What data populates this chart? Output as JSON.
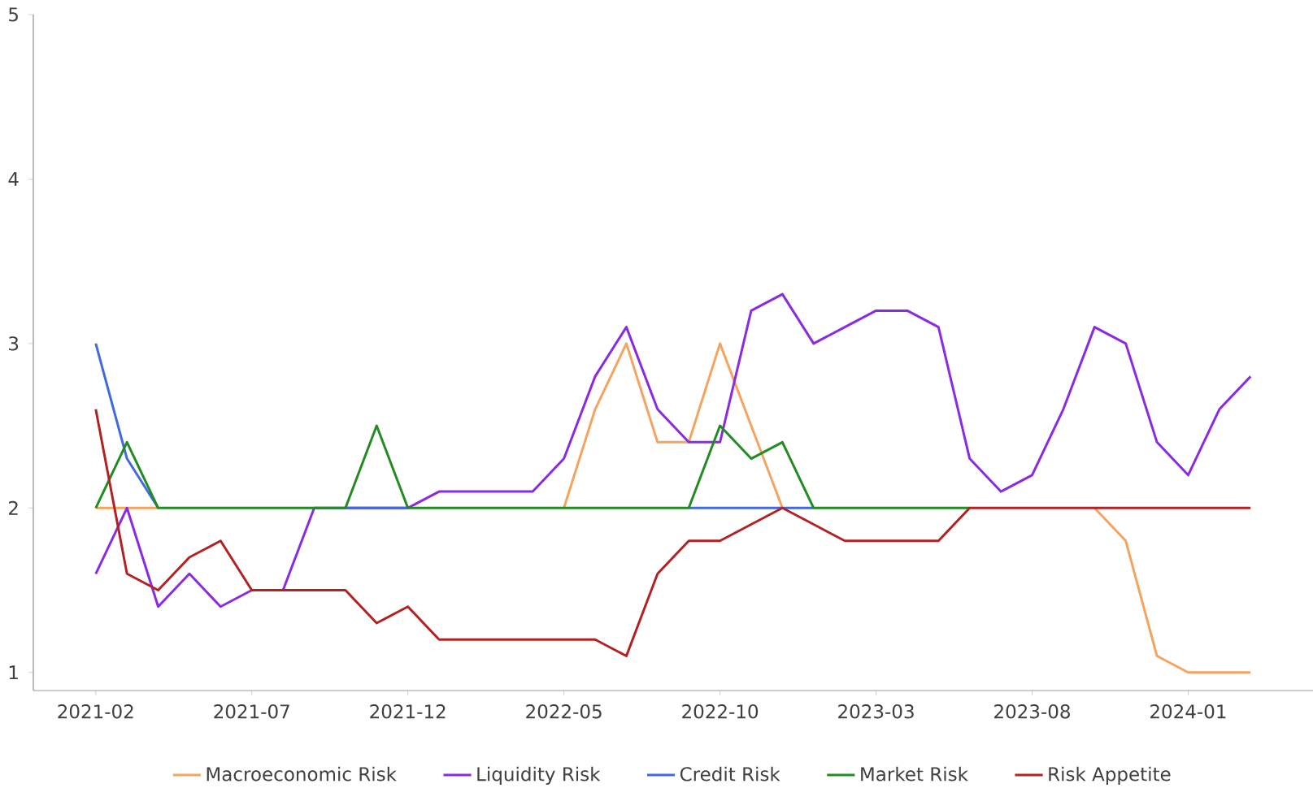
{
  "chart_data": {
    "type": "line",
    "x": [
      "2021-02",
      "2021-03",
      "2021-04",
      "2021-05",
      "2021-06",
      "2021-07",
      "2021-08",
      "2021-09",
      "2021-10",
      "2021-11",
      "2021-12",
      "2022-01",
      "2022-02",
      "2022-03",
      "2022-04",
      "2022-05",
      "2022-06",
      "2022-07",
      "2022-08",
      "2022-09",
      "2022-10",
      "2022-11",
      "2022-12",
      "2023-01",
      "2023-02",
      "2023-03",
      "2023-04",
      "2023-05",
      "2023-06",
      "2023-07",
      "2023-08",
      "2023-09",
      "2023-10",
      "2023-11",
      "2023-12",
      "2024-01",
      "2024-02",
      "2024-03"
    ],
    "series": [
      {
        "name": "Macroeconomic Risk",
        "color": "#f4a460",
        "values": [
          2,
          2,
          2,
          null,
          null,
          null,
          null,
          null,
          null,
          null,
          null,
          null,
          null,
          null,
          null,
          2,
          2.6,
          3.0,
          2.4,
          2.4,
          3.0,
          2.5,
          2,
          null,
          null,
          null,
          null,
          null,
          null,
          null,
          null,
          null,
          2,
          1.8,
          1.1,
          1.0,
          1.0,
          1.0
        ]
      },
      {
        "name": "Liquidity Risk",
        "color": "#8a2be2",
        "values": [
          1.6,
          2.0,
          1.4,
          1.6,
          1.4,
          1.5,
          1.5,
          2.0,
          2.0,
          2.0,
          2.0,
          2.1,
          2.1,
          2.1,
          2.1,
          2.3,
          2.8,
          3.1,
          2.6,
          2.4,
          2.4,
          3.2,
          3.3,
          3.0,
          3.1,
          3.2,
          3.2,
          3.1,
          2.3,
          2.1,
          2.2,
          2.6,
          3.1,
          3.0,
          2.4,
          2.2,
          2.6,
          2.8
        ]
      },
      {
        "name": "Credit Risk",
        "color": "#4169e1",
        "values": [
          3.0,
          2.3,
          2,
          null,
          null,
          null,
          null,
          null,
          2,
          2,
          2,
          null,
          null,
          null,
          null,
          null,
          null,
          null,
          null,
          2,
          2,
          2,
          2,
          2,
          null,
          null,
          null,
          null,
          null,
          null,
          null,
          null,
          null,
          null,
          null,
          null,
          null,
          null
        ]
      },
      {
        "name": "Market Risk",
        "color": "#228b22",
        "values": [
          2,
          2.4,
          2,
          2,
          2,
          2,
          2,
          2,
          2,
          2.5,
          2,
          2,
          2,
          2,
          2,
          2,
          2,
          2,
          2,
          2,
          2.5,
          2.3,
          2.4,
          2,
          2,
          2,
          2,
          2,
          2,
          null,
          null,
          null,
          null,
          null,
          null,
          null,
          null,
          null
        ]
      },
      {
        "name": "Risk Appetite",
        "color": "#b22222",
        "values": [
          2.6,
          1.6,
          1.5,
          1.7,
          1.8,
          1.5,
          1.5,
          1.5,
          1.5,
          1.3,
          1.4,
          1.2,
          1.2,
          1.2,
          1.2,
          1.2,
          1.2,
          1.1,
          1.6,
          1.8,
          1.8,
          1.9,
          2.0,
          1.9,
          1.8,
          1.8,
          1.8,
          1.8,
          2.0,
          2,
          2,
          2,
          2,
          2,
          2,
          2,
          2,
          2
        ]
      }
    ],
    "xlim": [
      "2020-12",
      "2024-05"
    ],
    "xticks": [
      "2021-02",
      "2021-07",
      "2021-12",
      "2022-05",
      "2022-10",
      "2023-03",
      "2023-08",
      "2024-01"
    ],
    "ylim": [
      0.89,
      5
    ],
    "yticks": [
      1,
      2,
      3,
      4,
      5
    ],
    "grid": false,
    "legend": "bottom",
    "marker": "none",
    "line_style": "solid"
  }
}
